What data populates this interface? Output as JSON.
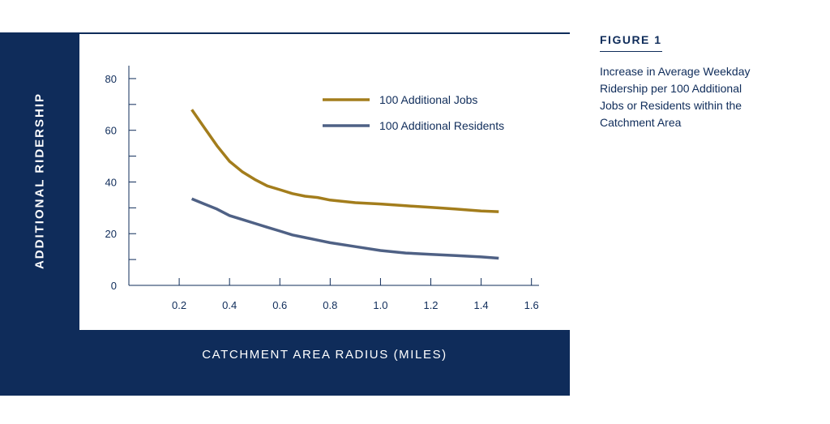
{
  "figure": {
    "label": "FIGURE 1",
    "caption": "Increase in Average Weekday Ridership per 100 Additional Jobs or Residents within the Catchment Area"
  },
  "colors": {
    "frame": "#0f2c5a",
    "jobs": "#a37d1c",
    "residents": "#4f6185",
    "axis": "#0f2c5a"
  },
  "chart_data": {
    "type": "line",
    "title": "",
    "xlabel": "CATCHMENT AREA RADIUS (MILES)",
    "ylabel": "ADDITIONAL RIDERSHIP",
    "xlim": [
      0,
      1.63
    ],
    "ylim": [
      0,
      85
    ],
    "x_ticks": [
      0.2,
      0.4,
      0.6,
      0.8,
      1.0,
      1.2,
      1.4,
      1.6
    ],
    "x_tick_labels": [
      "0.2",
      "0.4",
      "0.6",
      "0.8",
      "1.0",
      "1.2",
      "1.4",
      "1.6"
    ],
    "y_ticks": [
      0,
      10,
      20,
      30,
      40,
      50,
      60,
      70,
      80
    ],
    "y_tick_labels": [
      "0",
      "",
      "20",
      "",
      "40",
      "",
      "60",
      "",
      "80"
    ],
    "grid": false,
    "legend_position": "top-right",
    "series": [
      {
        "name": "100 Additional Jobs",
        "color": "#a37d1c",
        "x": [
          0.25,
          0.3,
          0.35,
          0.4,
          0.45,
          0.5,
          0.55,
          0.6,
          0.65,
          0.7,
          0.75,
          0.8,
          0.9,
          1.0,
          1.1,
          1.2,
          1.3,
          1.4,
          1.47
        ],
        "y": [
          68,
          61,
          54,
          48,
          44,
          41,
          38.5,
          37,
          35.5,
          34.5,
          34,
          33,
          32,
          31.5,
          30.8,
          30.2,
          29.5,
          28.8,
          28.5
        ]
      },
      {
        "name": "100 Additional Residents",
        "color": "#4f6185",
        "x": [
          0.25,
          0.3,
          0.35,
          0.4,
          0.45,
          0.5,
          0.55,
          0.6,
          0.65,
          0.7,
          0.75,
          0.8,
          0.9,
          1.0,
          1.1,
          1.2,
          1.3,
          1.4,
          1.47
        ],
        "y": [
          33.5,
          31.5,
          29.5,
          27,
          25.5,
          24,
          22.5,
          21,
          19.5,
          18.5,
          17.5,
          16.5,
          15,
          13.5,
          12.5,
          12,
          11.5,
          11,
          10.5
        ]
      }
    ]
  }
}
